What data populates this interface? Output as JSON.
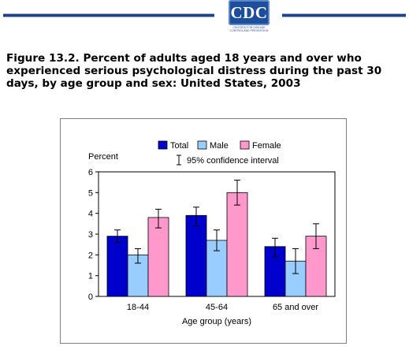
{
  "header": {
    "logo_text": "CDC",
    "logo_subtext": "CENTERS FOR DISEASE CONTROL AND PREVENTION",
    "brand_color": "#1d4e9b"
  },
  "figure": {
    "title": "Figure 13.2. Percent of adults aged 18 years and over who experienced serious psychological distress during the past 30 days, by age group and sex: United States, 2003"
  },
  "chart_data": {
    "type": "bar",
    "categories": [
      "18-44",
      "45-64",
      "65 and over"
    ],
    "series": [
      {
        "name": "Total",
        "color": "#0000cc",
        "values": [
          2.9,
          3.9,
          2.4
        ],
        "ci_low": [
          2.6,
          3.4,
          1.9
        ],
        "ci_high": [
          3.2,
          4.3,
          2.8
        ]
      },
      {
        "name": "Male",
        "color": "#99ccff",
        "values": [
          2.0,
          2.7,
          1.7
        ],
        "ci_low": [
          1.6,
          2.2,
          1.1
        ],
        "ci_high": [
          2.3,
          3.2,
          2.3
        ]
      },
      {
        "name": "Female",
        "color": "#ff99cc",
        "values": [
          3.8,
          5.0,
          2.9
        ],
        "ci_low": [
          3.3,
          4.4,
          2.3
        ],
        "ci_high": [
          4.2,
          5.6,
          3.5
        ]
      }
    ],
    "ylabel": "Percent",
    "xlabel": "Age group (years)",
    "ylim": [
      0,
      6
    ],
    "yticks": [
      "0",
      "1",
      "2",
      "3",
      "4",
      "5",
      "6"
    ],
    "ci_legend_label": "95% confidence interval",
    "legend_position": "top",
    "grid": false
  }
}
